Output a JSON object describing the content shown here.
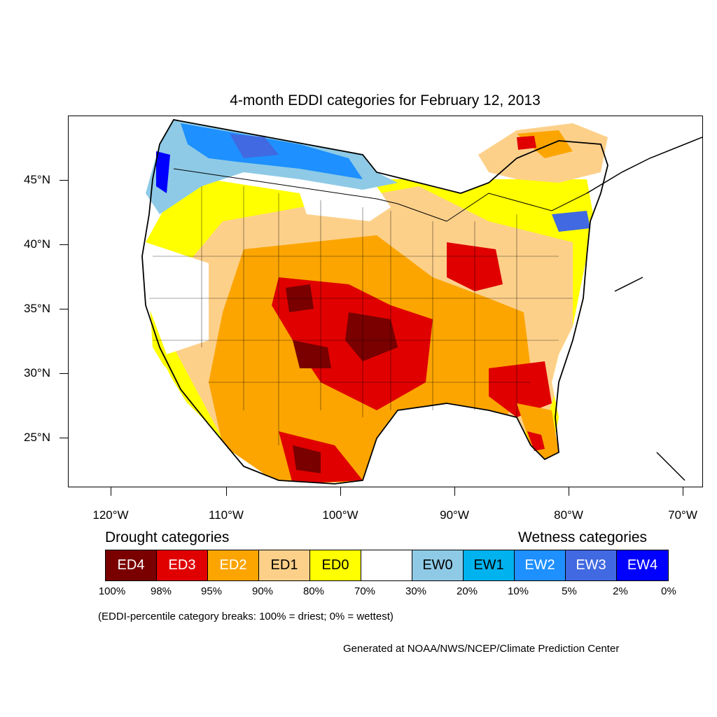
{
  "title": "4-month EDDI categories for February 12, 2013",
  "map": {
    "latitude_labels": [
      "45°N",
      "40°N",
      "35°N",
      "30°N",
      "25°N"
    ],
    "longitude_labels": [
      "120°W",
      "110°W",
      "100°W",
      "90°W",
      "80°W",
      "70°W"
    ],
    "colors": {
      "ED4": "#7a0000",
      "ED3": "#e00000",
      "ED2": "#fca500",
      "ED1": "#fdd08a",
      "ED0": "#ffff00",
      "neutral": "#ffffff",
      "EW0": "#8ecae6",
      "EW1": "#00b2ee",
      "EW2": "#1e90ff",
      "EW3": "#4169e1",
      "EW4": "#0000ff"
    }
  },
  "legend": {
    "drought_heading": "Drought categories",
    "wetness_heading": "Wetness categories",
    "categories": [
      {
        "label": "ED4",
        "color": "#7a0000",
        "text_color": "#ffffff"
      },
      {
        "label": "ED3",
        "color": "#e00000",
        "text_color": "#ffffff"
      },
      {
        "label": "ED2",
        "color": "#fca500",
        "text_color": "#ffffff"
      },
      {
        "label": "ED1",
        "color": "#fdd08a",
        "text_color": "#000000"
      },
      {
        "label": "ED0",
        "color": "#ffff00",
        "text_color": "#000000"
      },
      {
        "label": "",
        "color": "#ffffff",
        "text_color": "#000000"
      },
      {
        "label": "EW0",
        "color": "#8ecae6",
        "text_color": "#000000"
      },
      {
        "label": "EW1",
        "color": "#00b2ee",
        "text_color": "#000000"
      },
      {
        "label": "EW2",
        "color": "#1e90ff",
        "text_color": "#ffffff"
      },
      {
        "label": "EW3",
        "color": "#4169e1",
        "text_color": "#ffffff"
      },
      {
        "label": "EW4",
        "color": "#0000ff",
        "text_color": "#ffffff"
      }
    ],
    "percentiles": [
      "100%",
      "98%",
      "95%",
      "90%",
      "80%",
      "70%",
      "30%",
      "20%",
      "10%",
      "5%",
      "2%",
      "0%"
    ]
  },
  "note": "(EDDI-percentile category breaks: 100% = driest; 0% = wettest)",
  "credit": "Generated at NOAA/NWS/NCEP/Climate Prediction Center"
}
